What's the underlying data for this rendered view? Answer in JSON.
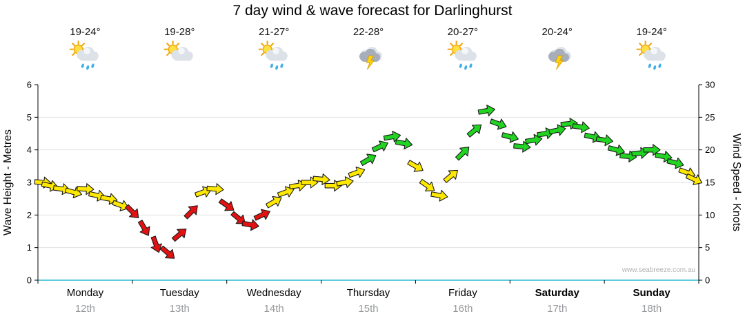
{
  "page": {
    "title": "7 day wind & wave forecast for Darlinghurst",
    "watermark": "www.seabreeze.com.au"
  },
  "days": [
    {
      "name": "Monday",
      "date": "12th",
      "temp": "19-24°",
      "icon": "sun-cloud-rain",
      "bold": false
    },
    {
      "name": "Tuesday",
      "date": "13th",
      "temp": "19-28°",
      "icon": "sun-cloud",
      "bold": false
    },
    {
      "name": "Wednesday",
      "date": "14th",
      "temp": "21-27°",
      "icon": "sun-cloud-rain",
      "bold": false
    },
    {
      "name": "Thursday",
      "date": "15th",
      "temp": "22-28°",
      "icon": "storm",
      "bold": false
    },
    {
      "name": "Friday",
      "date": "16th",
      "temp": "20-27°",
      "icon": "sun-cloud-rain",
      "bold": false
    },
    {
      "name": "Saturday",
      "date": "17th",
      "temp": "20-24°",
      "icon": "storm",
      "bold": true
    },
    {
      "name": "Sunday",
      "date": "18th",
      "temp": "19-24°",
      "icon": "sun-cloud-rain",
      "bold": true
    }
  ],
  "chart_data": {
    "type": "wind-arrow-series",
    "title": "7 day wind & wave forecast for Darlinghurst",
    "left_axis": {
      "label": "Wave Height - Metres",
      "min": 0,
      "max": 6,
      "ticks": [
        0,
        1,
        2,
        3,
        4,
        5,
        6
      ]
    },
    "right_axis": {
      "label": "Wind Speed - Knots",
      "min": 0,
      "max": 30,
      "ticks": [
        0,
        5,
        10,
        15,
        20,
        25,
        30
      ]
    },
    "x_axis": {
      "days": [
        "Monday",
        "Tuesday",
        "Wednesday",
        "Thursday",
        "Friday",
        "Saturday",
        "Sunday"
      ]
    },
    "speed_colors": {
      "r": "#e31212",
      "y": "#ffe800",
      "g": "#22d422"
    },
    "legend_note": "arrow color encodes wind strength: red light, yellow moderate, green strong",
    "points": [
      [
        0.05,
        15.0,
        5,
        "y"
      ],
      [
        0.125,
        14.5,
        12,
        "y"
      ],
      [
        0.25,
        14.0,
        8,
        "y"
      ],
      [
        0.375,
        13.5,
        15,
        "y"
      ],
      [
        0.5,
        14.0,
        3,
        "y"
      ],
      [
        0.625,
        13.0,
        12,
        "y"
      ],
      [
        0.75,
        12.5,
        10,
        "y"
      ],
      [
        0.875,
        11.5,
        20,
        "y"
      ],
      [
        1.0,
        10.5,
        45,
        "r"
      ],
      [
        1.125,
        8.0,
        60,
        "r"
      ],
      [
        1.25,
        5.5,
        70,
        "r"
      ],
      [
        1.375,
        4.2,
        40,
        "r"
      ],
      [
        1.5,
        7.0,
        -40,
        "r"
      ],
      [
        1.625,
        10.5,
        -45,
        "r"
      ],
      [
        1.75,
        13.5,
        -20,
        "y"
      ],
      [
        1.875,
        14.0,
        5,
        "y"
      ],
      [
        2.0,
        11.5,
        35,
        "r"
      ],
      [
        2.125,
        9.5,
        40,
        "r"
      ],
      [
        2.25,
        8.5,
        10,
        "r"
      ],
      [
        2.375,
        10.0,
        -25,
        "r"
      ],
      [
        2.5,
        12.0,
        -30,
        "y"
      ],
      [
        2.625,
        13.5,
        -20,
        "y"
      ],
      [
        2.75,
        14.5,
        -8,
        "y"
      ],
      [
        2.875,
        15.0,
        0,
        "y"
      ],
      [
        3.0,
        15.5,
        5,
        "y"
      ],
      [
        3.125,
        14.5,
        0,
        "y"
      ],
      [
        3.25,
        15.0,
        -10,
        "y"
      ],
      [
        3.375,
        16.5,
        -20,
        "y"
      ],
      [
        3.5,
        18.5,
        -30,
        "g"
      ],
      [
        3.625,
        20.5,
        -25,
        "g"
      ],
      [
        3.75,
        22.0,
        -10,
        "g"
      ],
      [
        3.875,
        21.0,
        10,
        "g"
      ],
      [
        4.0,
        17.5,
        30,
        "y"
      ],
      [
        4.125,
        14.5,
        35,
        "y"
      ],
      [
        4.25,
        13.0,
        10,
        "y"
      ],
      [
        4.375,
        16.0,
        -40,
        "y"
      ],
      [
        4.5,
        19.5,
        -45,
        "g"
      ],
      [
        4.625,
        23.0,
        -40,
        "g"
      ],
      [
        4.75,
        26.0,
        -10,
        "g"
      ],
      [
        4.875,
        24.0,
        20,
        "g"
      ],
      [
        5.0,
        22.0,
        15,
        "g"
      ],
      [
        5.125,
        20.5,
        5,
        "g"
      ],
      [
        5.25,
        21.5,
        -10,
        "g"
      ],
      [
        5.375,
        22.5,
        -10,
        "g"
      ],
      [
        5.5,
        23.0,
        -12,
        "g"
      ],
      [
        5.625,
        24.0,
        -5,
        "g"
      ],
      [
        5.75,
        23.5,
        8,
        "g"
      ],
      [
        5.875,
        22.0,
        12,
        "g"
      ],
      [
        6.0,
        21.5,
        8,
        "g"
      ],
      [
        6.125,
        20.0,
        15,
        "g"
      ],
      [
        6.25,
        19.0,
        5,
        "g"
      ],
      [
        6.375,
        19.5,
        -5,
        "g"
      ],
      [
        6.5,
        20.0,
        0,
        "g"
      ],
      [
        6.625,
        19.0,
        10,
        "g"
      ],
      [
        6.75,
        18.0,
        15,
        "g"
      ],
      [
        6.875,
        16.5,
        20,
        "y"
      ],
      [
        6.95,
        15.5,
        25,
        "y"
      ]
    ]
  }
}
